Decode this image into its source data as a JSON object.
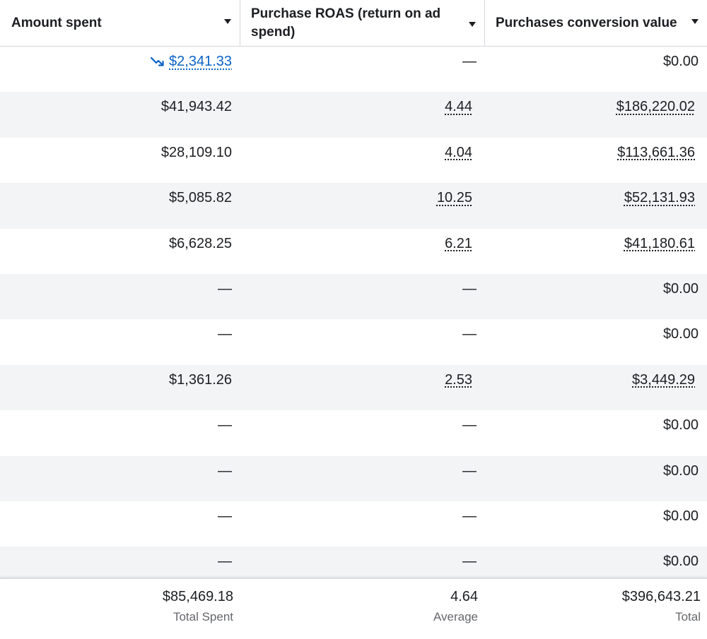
{
  "header": {
    "amount_spent": "Amount spent",
    "purchase_roas": "Purchase ROAS (return on ad spend)",
    "purchases_conversion_value": "Purchases conversion value"
  },
  "rows": [
    {
      "amount_spent": "$2,341.33",
      "roas": "—",
      "conv_value": "$0.00"
    },
    {
      "amount_spent": "$41,943.42",
      "roas": "4.44",
      "conv_value": "$186,220.02"
    },
    {
      "amount_spent": "$28,109.10",
      "roas": "4.04",
      "conv_value": "$113,661.36"
    },
    {
      "amount_spent": "$5,085.82",
      "roas": "10.25",
      "conv_value": "$52,131.93"
    },
    {
      "amount_spent": "$6,628.25",
      "roas": "6.21",
      "conv_value": "$41,180.61"
    },
    {
      "amount_spent": "—",
      "roas": "—",
      "conv_value": "$0.00"
    },
    {
      "amount_spent": "—",
      "roas": "—",
      "conv_value": "$0.00"
    },
    {
      "amount_spent": "$1,361.26",
      "roas": "2.53",
      "conv_value": "$3,449.29"
    },
    {
      "amount_spent": "—",
      "roas": "—",
      "conv_value": "$0.00"
    },
    {
      "amount_spent": "—",
      "roas": "—",
      "conv_value": "$0.00"
    },
    {
      "amount_spent": "—",
      "roas": "—",
      "conv_value": "$0.00"
    },
    {
      "amount_spent": "—",
      "roas": "—",
      "conv_value": "$0.00"
    }
  ],
  "footer": {
    "amount_spent": {
      "value": "$85,469.18",
      "label": "Total Spent"
    },
    "roas": {
      "value": "4.64",
      "label": "Average"
    },
    "conv_value": {
      "value": "$396,643.21",
      "label": "Total"
    }
  },
  "colors": {
    "link": "#0a62c5",
    "alt_row": "#f3f4f6",
    "text": "#1c1e21",
    "muted": "#65676b"
  },
  "icons": {
    "trend": "trending-down-icon",
    "sort": "caret-down-icon"
  }
}
